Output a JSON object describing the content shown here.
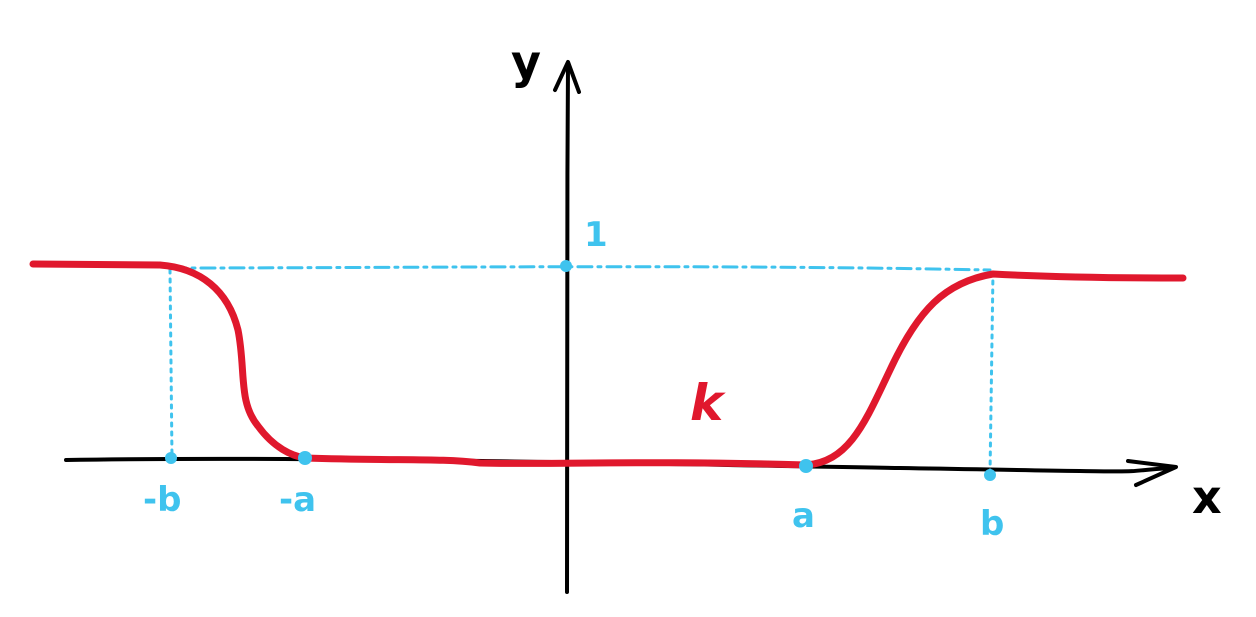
{
  "axes": {
    "x_label": "x",
    "y_label": "y"
  },
  "ticks": {
    "minus_b": "-b",
    "minus_a": "-a",
    "a": "a",
    "b": "b",
    "one": "1"
  },
  "curve": {
    "label": "k"
  },
  "colors": {
    "axis": "#000000",
    "curve": "#e0182d",
    "guide": "#3fc3ee"
  }
}
